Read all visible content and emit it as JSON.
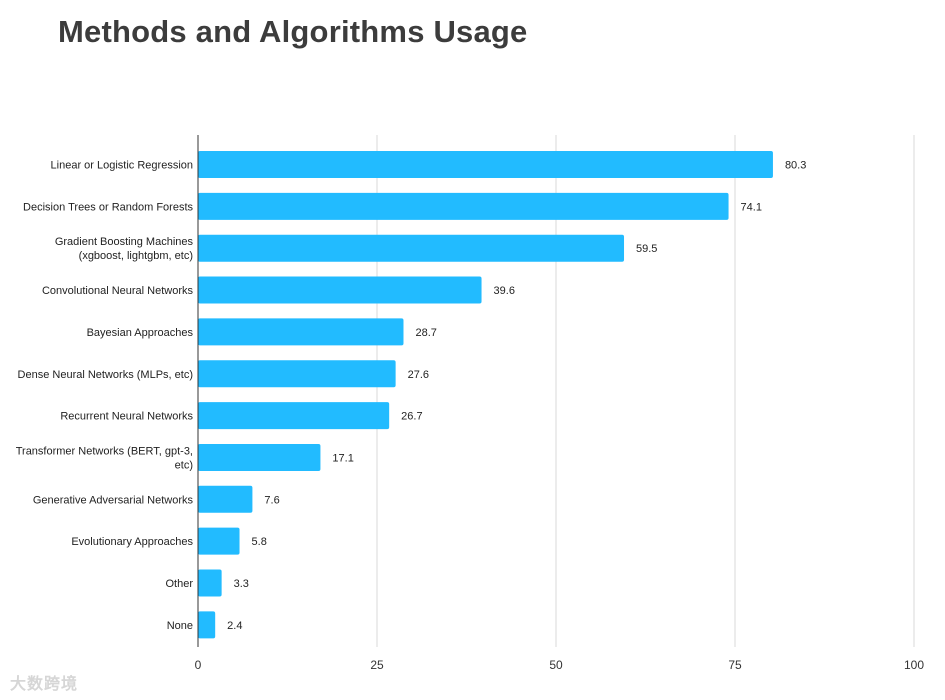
{
  "page": {
    "title": "Methods and Algorithms Usage"
  },
  "watermark": {
    "text": "大数跨境"
  },
  "colors": {
    "bar": "#22bbff",
    "grid": "#d9d9d9",
    "axis": "#333333"
  },
  "chart_data": {
    "type": "bar",
    "orientation": "horizontal",
    "title": "Methods and Algorithms Usage",
    "xlabel": "",
    "ylabel": "",
    "xlim": [
      0,
      100
    ],
    "xticks": [
      0,
      25,
      50,
      75,
      100
    ],
    "grid": true,
    "categories": [
      [
        "Linear or Logistic Regression"
      ],
      [
        "Decision Trees or Random Forests"
      ],
      [
        "Gradient Boosting Machines",
        "(xgboost, lightgbm, etc)"
      ],
      [
        "Convolutional Neural Networks"
      ],
      [
        "Bayesian Approaches"
      ],
      [
        "Dense Neural Networks (MLPs, etc)"
      ],
      [
        "Recurrent Neural Networks"
      ],
      [
        "Transformer Networks (BERT, gpt-3,",
        "etc)"
      ],
      [
        "Generative Adversarial Networks"
      ],
      [
        "Evolutionary Approaches"
      ],
      [
        "Other"
      ],
      [
        "None"
      ]
    ],
    "values": [
      80.3,
      74.1,
      59.5,
      39.6,
      28.7,
      27.6,
      26.7,
      17.1,
      7.6,
      5.8,
      3.3,
      2.4
    ]
  }
}
